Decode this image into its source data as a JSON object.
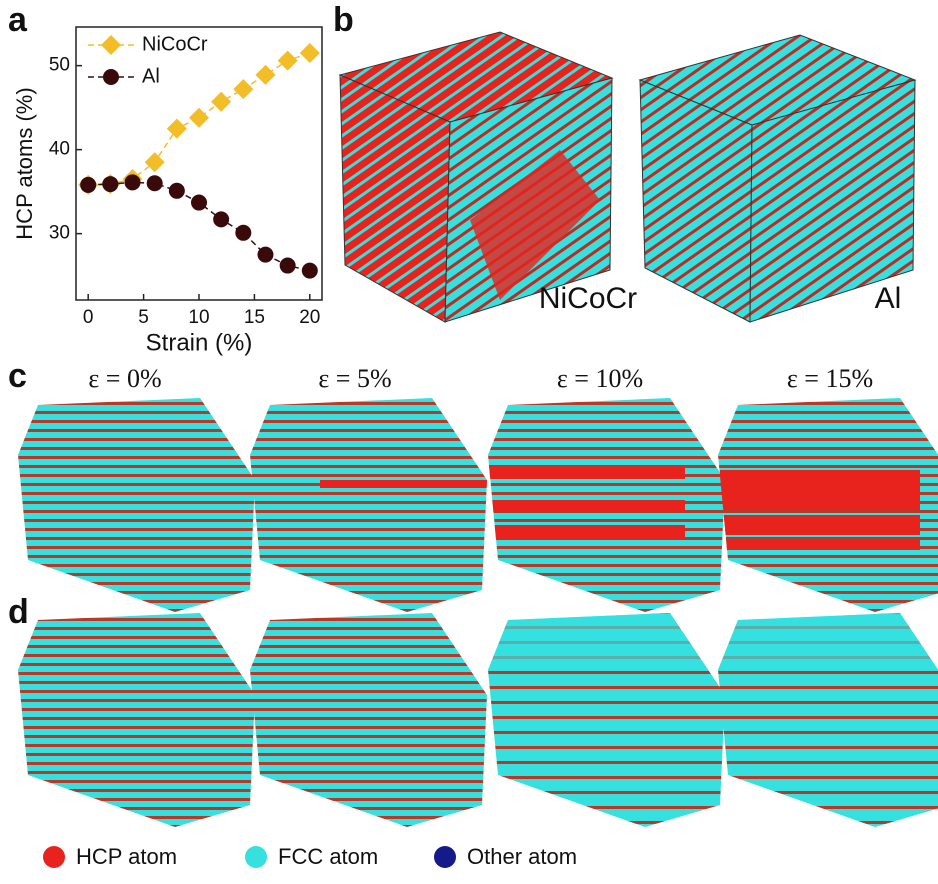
{
  "panel_labels": [
    "a",
    "b",
    "c",
    "d"
  ],
  "chart_data": {
    "type": "line",
    "x_label": "Strain (%)",
    "y_label": "HCP atoms (%)",
    "x": [
      0,
      2,
      4,
      6,
      8,
      10,
      12,
      14,
      16,
      18,
      20
    ],
    "series": [
      {
        "name": "NiCoCr",
        "color": "#f2bd26",
        "marker": "diamond",
        "values": [
          35.8,
          35.9,
          36.5,
          38.5,
          42.5,
          43.8,
          45.7,
          47.2,
          48.9,
          50.6,
          51.5
        ]
      },
      {
        "name": "Al",
        "color": "#3a0a0a",
        "marker": "circle",
        "values": [
          35.8,
          35.9,
          36.1,
          36.0,
          35.1,
          33.7,
          31.7,
          30.1,
          27.5,
          26.2,
          25.6
        ]
      }
    ],
    "xlim": [
      -1.1,
      21.1
    ],
    "ylim": [
      22.1,
      54.6
    ],
    "xticks": [
      0,
      5,
      10,
      15,
      20
    ],
    "yticks": [
      30,
      40,
      50
    ],
    "legend": "upper left"
  },
  "structures": [
    "NiCoCr",
    "Al"
  ],
  "strain_labels": [
    "ε = 0%",
    "ε = 5%",
    "ε = 10%",
    "ε = 15%"
  ],
  "atom_legend": [
    "HCP atom",
    "FCC atom",
    "Other atom"
  ]
}
